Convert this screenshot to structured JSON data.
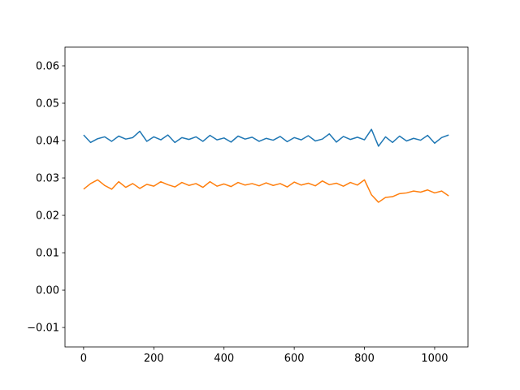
{
  "chart_data": {
    "type": "line",
    "x": [
      0,
      20,
      40,
      60,
      80,
      100,
      120,
      140,
      160,
      180,
      200,
      220,
      240,
      260,
      280,
      300,
      320,
      340,
      360,
      380,
      400,
      420,
      440,
      460,
      480,
      500,
      520,
      540,
      560,
      580,
      600,
      620,
      640,
      660,
      680,
      700,
      720,
      740,
      760,
      780,
      800,
      820,
      840,
      860,
      880,
      900,
      920,
      940,
      960,
      980,
      1000,
      1020,
      1040
    ],
    "series": [
      {
        "color": "#1f77b4",
        "values": [
          0.0415,
          0.0395,
          0.0405,
          0.041,
          0.0398,
          0.0412,
          0.0404,
          0.0408,
          0.0425,
          0.0398,
          0.041,
          0.0402,
          0.0415,
          0.0395,
          0.0408,
          0.0403,
          0.041,
          0.0398,
          0.0414,
          0.0402,
          0.0407,
          0.0396,
          0.0412,
          0.0404,
          0.0409,
          0.0398,
          0.0406,
          0.0401,
          0.0411,
          0.0397,
          0.0408,
          0.0402,
          0.0413,
          0.0399,
          0.0404,
          0.0418,
          0.0396,
          0.0411,
          0.0403,
          0.0409,
          0.0402,
          0.043,
          0.0385,
          0.041,
          0.0395,
          0.0412,
          0.0399,
          0.0406,
          0.0401,
          0.0414,
          0.0393,
          0.0408,
          0.0415
        ]
      },
      {
        "color": "#ff7f0e",
        "values": [
          0.027,
          0.0285,
          0.0295,
          0.028,
          0.027,
          0.029,
          0.0275,
          0.0285,
          0.0272,
          0.0283,
          0.0278,
          0.029,
          0.0282,
          0.0276,
          0.0288,
          0.028,
          0.0285,
          0.0275,
          0.029,
          0.0278,
          0.0284,
          0.0277,
          0.0288,
          0.0281,
          0.0285,
          0.0279,
          0.0287,
          0.028,
          0.0285,
          0.0276,
          0.0289,
          0.0281,
          0.0286,
          0.0279,
          0.0292,
          0.0282,
          0.0286,
          0.0278,
          0.0288,
          0.0281,
          0.0295,
          0.0255,
          0.0235,
          0.0248,
          0.025,
          0.0258,
          0.026,
          0.0265,
          0.0262,
          0.0268,
          0.026,
          0.0265,
          0.0252
        ]
      }
    ],
    "xlim": [
      -53,
      1095
    ],
    "ylim": [
      -0.0152,
      0.065
    ],
    "xticks": [
      0,
      200,
      400,
      600,
      800,
      1000
    ],
    "yticks": [
      {
        "value": -0.01,
        "label": "−0.01"
      },
      {
        "value": 0,
        "label": "0.00"
      },
      {
        "value": 0.01,
        "label": "0.01"
      },
      {
        "value": 0.02,
        "label": "0.02"
      },
      {
        "value": 0.03,
        "label": "0.03"
      },
      {
        "value": 0.04,
        "label": "0.04"
      },
      {
        "value": 0.05,
        "label": "0.05"
      },
      {
        "value": 0.06,
        "label": "0.06"
      }
    ]
  }
}
